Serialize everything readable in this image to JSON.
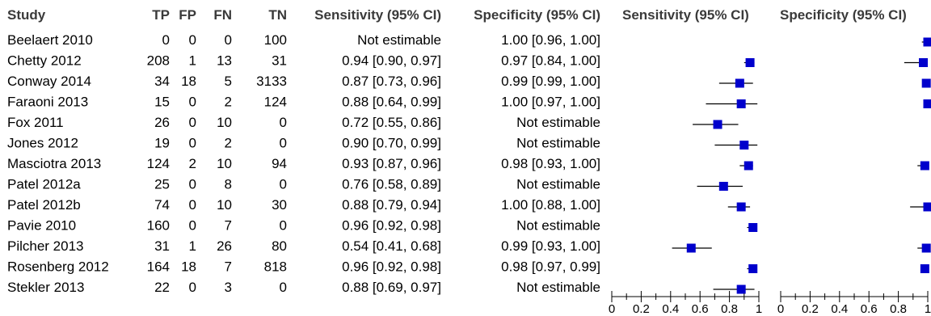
{
  "headers": {
    "study": "Study",
    "tp": "TP",
    "fp": "FP",
    "fn": "FN",
    "tn": "TN",
    "sens": "Sensitivity (95% CI)",
    "spec": "Specificity (95% CI)",
    "sens_plot": "Sensitivity (95% CI)",
    "spec_plot": "Specificity (95% CI)"
  },
  "rows": [
    {
      "study": "Beelaert 2010",
      "tp": "0",
      "fp": "0",
      "fn": "0",
      "tn": "100",
      "sens": "Not estimable",
      "spec": "1.00 [0.96, 1.00]"
    },
    {
      "study": "Chetty 2012",
      "tp": "208",
      "fp": "1",
      "fn": "13",
      "tn": "31",
      "sens": "0.94 [0.90, 0.97]",
      "spec": "0.97 [0.84, 1.00]"
    },
    {
      "study": "Conway 2014",
      "tp": "34",
      "fp": "18",
      "fn": "5",
      "tn": "3133",
      "sens": "0.87 [0.73, 0.96]",
      "spec": "0.99 [0.99, 1.00]"
    },
    {
      "study": "Faraoni 2013",
      "tp": "15",
      "fp": "0",
      "fn": "2",
      "tn": "124",
      "sens": "0.88 [0.64, 0.99]",
      "spec": "1.00 [0.97, 1.00]"
    },
    {
      "study": "Fox 2011",
      "tp": "26",
      "fp": "0",
      "fn": "10",
      "tn": "0",
      "sens": "0.72 [0.55, 0.86]",
      "spec": "Not estimable"
    },
    {
      "study": "Jones 2012",
      "tp": "19",
      "fp": "0",
      "fn": "2",
      "tn": "0",
      "sens": "0.90 [0.70, 0.99]",
      "spec": "Not estimable"
    },
    {
      "study": "Masciotra 2013",
      "tp": "124",
      "fp": "2",
      "fn": "10",
      "tn": "94",
      "sens": "0.93 [0.87, 0.96]",
      "spec": "0.98 [0.93, 1.00]"
    },
    {
      "study": "Patel 2012a",
      "tp": "25",
      "fp": "0",
      "fn": "8",
      "tn": "0",
      "sens": "0.76 [0.58, 0.89]",
      "spec": "Not estimable"
    },
    {
      "study": "Patel 2012b",
      "tp": "74",
      "fp": "0",
      "fn": "10",
      "tn": "30",
      "sens": "0.88 [0.79, 0.94]",
      "spec": "1.00 [0.88, 1.00]"
    },
    {
      "study": "Pavie 2010",
      "tp": "160",
      "fp": "0",
      "fn": "7",
      "tn": "0",
      "sens": "0.96 [0.92, 0.98]",
      "spec": "Not estimable"
    },
    {
      "study": "Pilcher 2013",
      "tp": "31",
      "fp": "1",
      "fn": "26",
      "tn": "80",
      "sens": "0.54 [0.41, 0.68]",
      "spec": "0.99 [0.93, 1.00]"
    },
    {
      "study": "Rosenberg 2012",
      "tp": "164",
      "fp": "18",
      "fn": "7",
      "tn": "818",
      "sens": "0.96 [0.92, 0.98]",
      "spec": "0.98 [0.97, 0.99]"
    },
    {
      "study": "Stekler 2013",
      "tp": "22",
      "fp": "0",
      "fn": "3",
      "tn": "0",
      "sens": "0.88 [0.69, 0.97]",
      "spec": "Not estimable"
    }
  ],
  "chart_data": [
    {
      "type": "scatter",
      "title": "Sensitivity (95% CI)",
      "xlim": [
        0,
        1
      ],
      "xticks": [
        "0",
        "0.2",
        "0.4",
        "0.6",
        "0.8",
        "1"
      ],
      "marker_color": "#0000cc",
      "points": [
        null,
        {
          "est": 0.94,
          "lo": 0.9,
          "hi": 0.97
        },
        {
          "est": 0.87,
          "lo": 0.73,
          "hi": 0.96
        },
        {
          "est": 0.88,
          "lo": 0.64,
          "hi": 0.99
        },
        {
          "est": 0.72,
          "lo": 0.55,
          "hi": 0.86
        },
        {
          "est": 0.9,
          "lo": 0.7,
          "hi": 0.99
        },
        {
          "est": 0.93,
          "lo": 0.87,
          "hi": 0.96
        },
        {
          "est": 0.76,
          "lo": 0.58,
          "hi": 0.89
        },
        {
          "est": 0.88,
          "lo": 0.79,
          "hi": 0.94
        },
        {
          "est": 0.96,
          "lo": 0.92,
          "hi": 0.98
        },
        {
          "est": 0.54,
          "lo": 0.41,
          "hi": 0.68
        },
        {
          "est": 0.96,
          "lo": 0.92,
          "hi": 0.98
        },
        {
          "est": 0.88,
          "lo": 0.69,
          "hi": 0.97
        }
      ]
    },
    {
      "type": "scatter",
      "title": "Specificity (95% CI)",
      "xlim": [
        0,
        1
      ],
      "xticks": [
        "0",
        "0.2",
        "0.4",
        "0.6",
        "0.8",
        "1"
      ],
      "marker_color": "#0000cc",
      "points": [
        {
          "est": 1.0,
          "lo": 0.96,
          "hi": 1.0
        },
        {
          "est": 0.97,
          "lo": 0.84,
          "hi": 1.0
        },
        {
          "est": 0.99,
          "lo": 0.99,
          "hi": 1.0
        },
        {
          "est": 1.0,
          "lo": 0.97,
          "hi": 1.0
        },
        null,
        null,
        {
          "est": 0.98,
          "lo": 0.93,
          "hi": 1.0
        },
        null,
        {
          "est": 1.0,
          "lo": 0.88,
          "hi": 1.0
        },
        null,
        {
          "est": 0.99,
          "lo": 0.93,
          "hi": 1.0
        },
        {
          "est": 0.98,
          "lo": 0.97,
          "hi": 0.99
        },
        null
      ]
    }
  ]
}
